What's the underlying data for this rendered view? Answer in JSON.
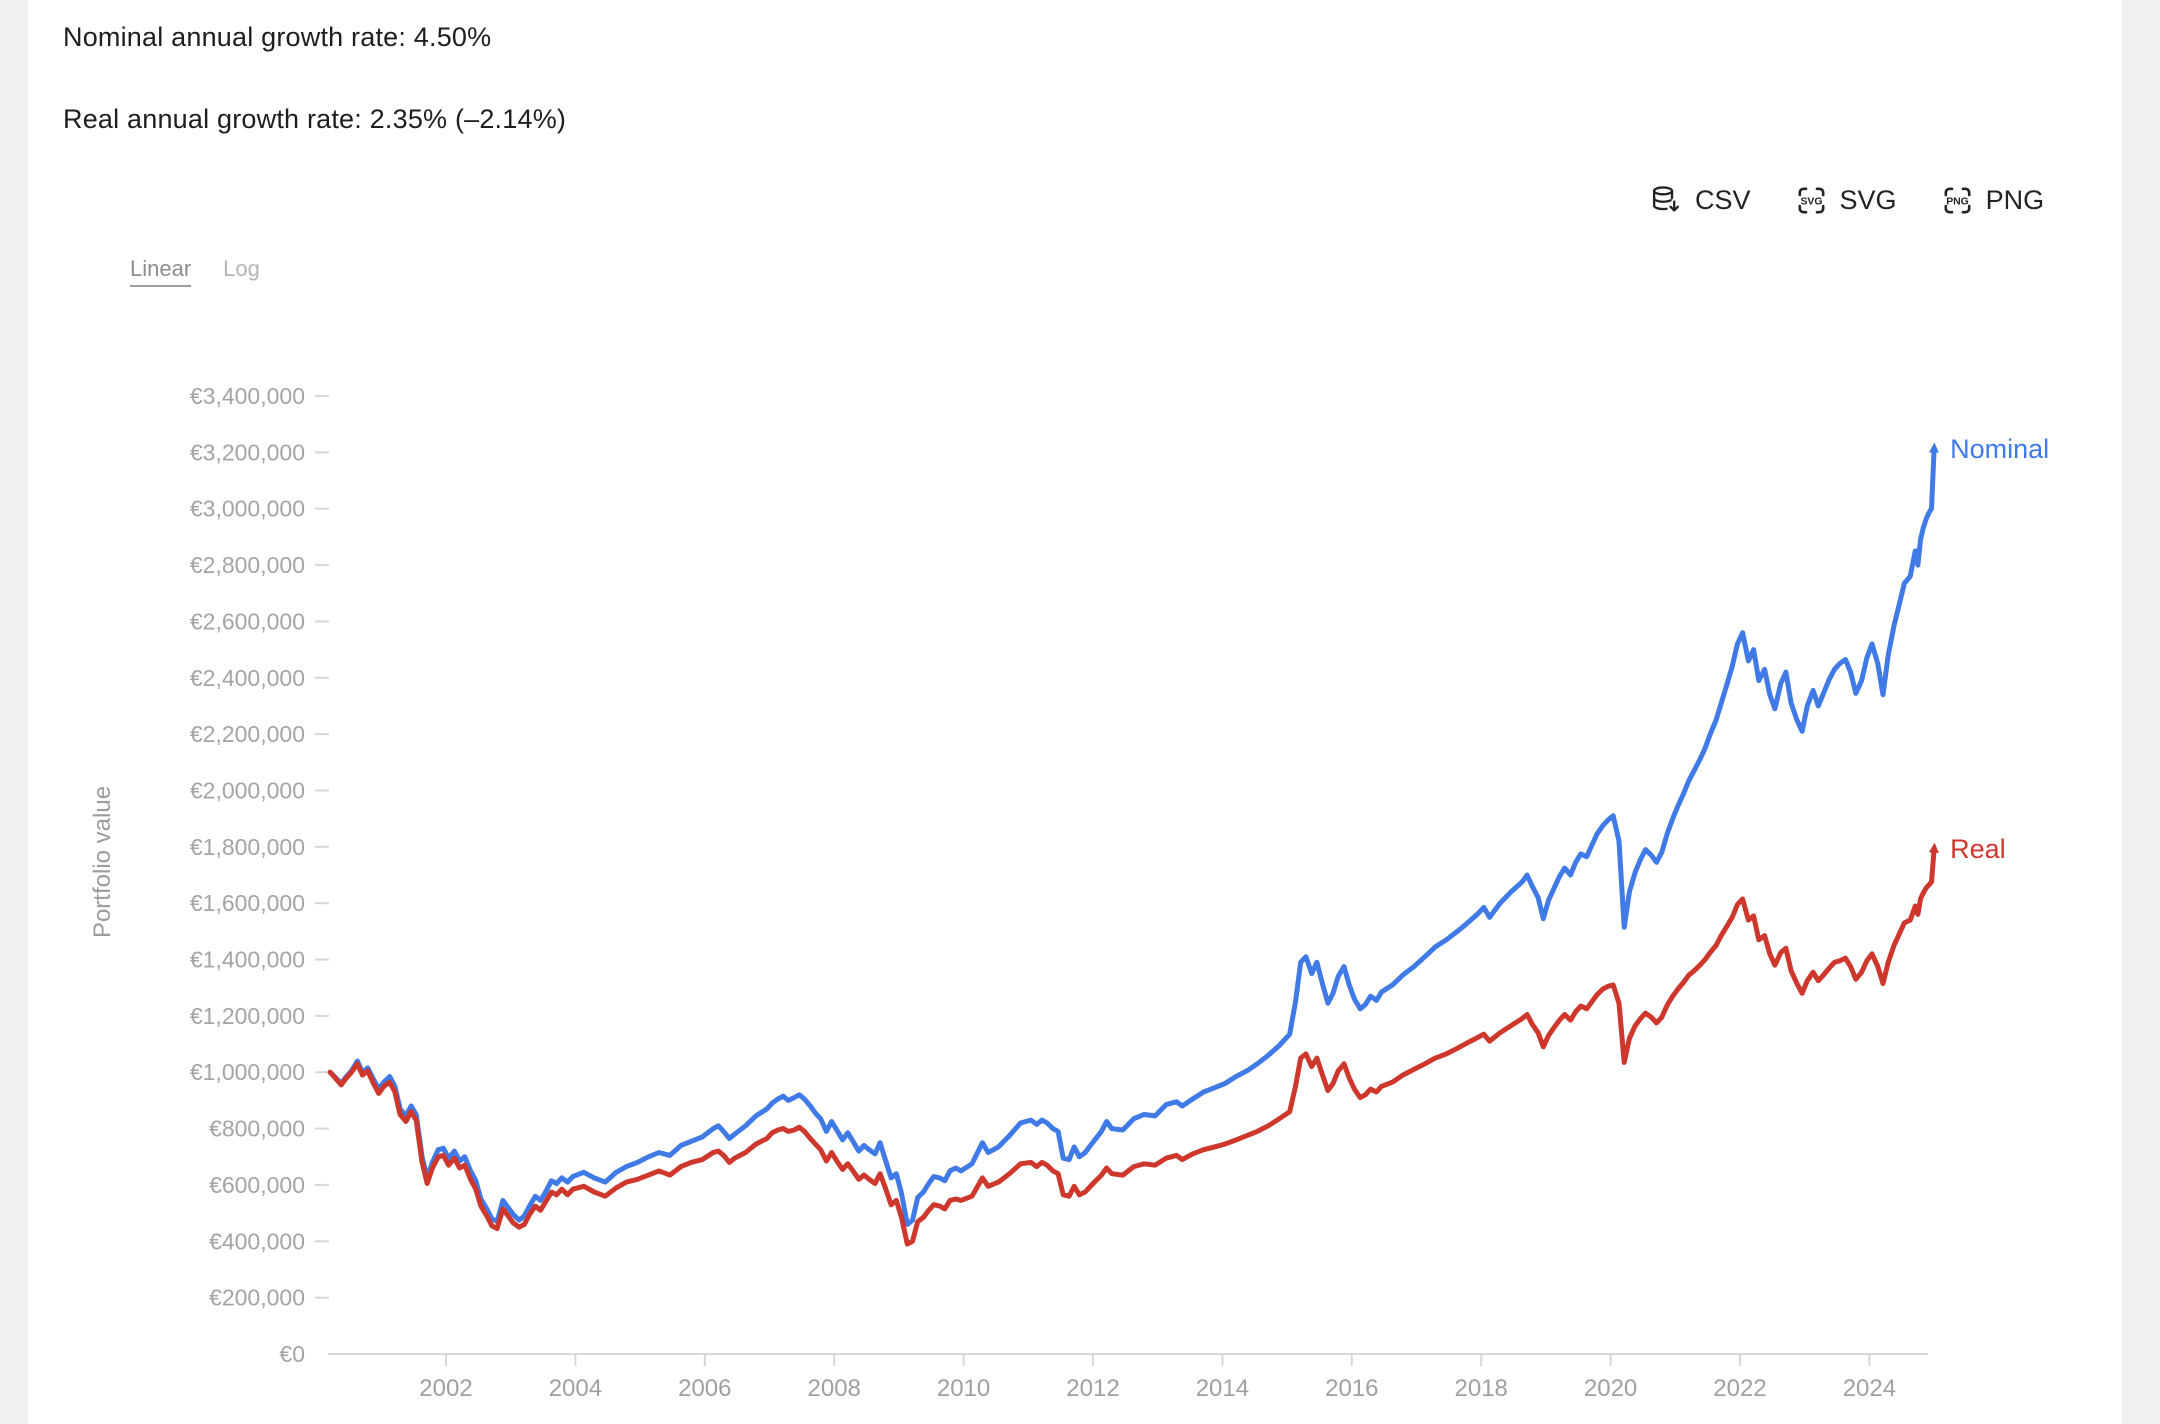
{
  "header": {
    "line1": "Nominal annual growth rate: 4.50%",
    "line2": "Real annual growth rate: 2.35% (–2.14%)"
  },
  "export_buttons": [
    {
      "id": "csv",
      "label": "CSV",
      "icon": "database-download-icon",
      "icon_text": ""
    },
    {
      "id": "svg",
      "label": "SVG",
      "icon": "svg-file-badge-icon",
      "icon_text": "SVG"
    },
    {
      "id": "png",
      "label": "PNG",
      "icon": "png-file-badge-icon",
      "icon_text": "PNG"
    }
  ],
  "scale_toggle": {
    "options": [
      {
        "label": "Linear",
        "active": true
      },
      {
        "label": "Log",
        "active": false
      }
    ]
  },
  "y_axis_title": "Portfolio value",
  "colors": {
    "nominal": "#3f7ae6",
    "real": "#cd372c",
    "axis_line": "#dadada",
    "tick_mark": "#d7d7d7",
    "y_label_text": "#a4a4a7",
    "x_label_text": "#a0a0a3",
    "header_text": "#1e1e1e",
    "export_text": "#232323",
    "side_strip": "#f0f0f1"
  },
  "chart_data": {
    "type": "line",
    "title": "",
    "xlabel": "",
    "ylabel": "Portfolio value",
    "grid": false,
    "legend": "end-of-line-labels",
    "x_unit": "decimal year",
    "values_unit": "EUR (thousands)",
    "xlim": [
      2000.2,
      2025.0
    ],
    "ylim": [
      0,
      3400000
    ],
    "y_ticks": [
      {
        "value": 0,
        "label": "€0"
      },
      {
        "value": 200000,
        "label": "€200,000"
      },
      {
        "value": 400000,
        "label": "€400,000"
      },
      {
        "value": 600000,
        "label": "€600,000"
      },
      {
        "value": 800000,
        "label": "€800,000"
      },
      {
        "value": 1000000,
        "label": "€1,000,000"
      },
      {
        "value": 1200000,
        "label": "€1,200,000"
      },
      {
        "value": 1400000,
        "label": "€1,400,000"
      },
      {
        "value": 1600000,
        "label": "€1,600,000"
      },
      {
        "value": 1800000,
        "label": "€1,800,000"
      },
      {
        "value": 2000000,
        "label": "€2,000,000"
      },
      {
        "value": 2200000,
        "label": "€2,200,000"
      },
      {
        "value": 2400000,
        "label": "€2,400,000"
      },
      {
        "value": 2600000,
        "label": "€2,600,000"
      },
      {
        "value": 2800000,
        "label": "€2,800,000"
      },
      {
        "value": 3000000,
        "label": "€3,000,000"
      },
      {
        "value": 3200000,
        "label": "€3,200,000"
      },
      {
        "value": 3400000,
        "label": "€3,400,000"
      }
    ],
    "x_ticks": [
      {
        "value": 2002,
        "label": "2002"
      },
      {
        "value": 2004,
        "label": "2004"
      },
      {
        "value": 2006,
        "label": "2006"
      },
      {
        "value": 2008,
        "label": "2008"
      },
      {
        "value": 2010,
        "label": "2010"
      },
      {
        "value": 2012,
        "label": "2012"
      },
      {
        "value": 2014,
        "label": "2014"
      },
      {
        "value": 2016,
        "label": "2016"
      },
      {
        "value": 2018,
        "label": "2018"
      },
      {
        "value": 2020,
        "label": "2020"
      },
      {
        "value": 2022,
        "label": "2022"
      },
      {
        "value": 2024,
        "label": "2024"
      }
    ],
    "x": [
      2000.21,
      2000.38,
      2000.46,
      2000.54,
      2000.63,
      2000.71,
      2000.79,
      2000.88,
      2000.96,
      2001.04,
      2001.13,
      2001.21,
      2001.29,
      2001.38,
      2001.46,
      2001.54,
      2001.63,
      2001.71,
      2001.79,
      2001.88,
      2001.96,
      2002.04,
      2002.13,
      2002.21,
      2002.29,
      2002.38,
      2002.46,
      2002.54,
      2002.63,
      2002.71,
      2002.79,
      2002.88,
      2002.96,
      2003.04,
      2003.13,
      2003.21,
      2003.29,
      2003.38,
      2003.46,
      2003.54,
      2003.63,
      2003.71,
      2003.79,
      2003.88,
      2003.96,
      2004.13,
      2004.29,
      2004.46,
      2004.63,
      2004.79,
      2004.96,
      2005.13,
      2005.29,
      2005.46,
      2005.63,
      2005.79,
      2005.96,
      2006.13,
      2006.21,
      2006.29,
      2006.38,
      2006.46,
      2006.63,
      2006.79,
      2006.96,
      2007.04,
      2007.13,
      2007.21,
      2007.29,
      2007.38,
      2007.46,
      2007.54,
      2007.63,
      2007.71,
      2007.79,
      2007.88,
      2007.96,
      2008.04,
      2008.13,
      2008.21,
      2008.29,
      2008.38,
      2008.46,
      2008.54,
      2008.63,
      2008.71,
      2008.79,
      2008.88,
      2008.96,
      2009.04,
      2009.13,
      2009.21,
      2009.29,
      2009.38,
      2009.46,
      2009.54,
      2009.63,
      2009.71,
      2009.79,
      2009.88,
      2009.96,
      2010.13,
      2010.29,
      2010.38,
      2010.54,
      2010.71,
      2010.88,
      2011.04,
      2011.13,
      2011.21,
      2011.29,
      2011.38,
      2011.46,
      2011.54,
      2011.63,
      2011.71,
      2011.79,
      2011.88,
      2011.96,
      2012.13,
      2012.21,
      2012.29,
      2012.46,
      2012.63,
      2012.79,
      2012.96,
      2013.13,
      2013.29,
      2013.38,
      2013.54,
      2013.71,
      2013.88,
      2014.04,
      2014.21,
      2014.38,
      2014.54,
      2014.71,
      2014.88,
      2015.04,
      2015.13,
      2015.21,
      2015.29,
      2015.38,
      2015.46,
      2015.54,
      2015.63,
      2015.71,
      2015.79,
      2015.88,
      2015.96,
      2016.04,
      2016.13,
      2016.21,
      2016.29,
      2016.38,
      2016.46,
      2016.63,
      2016.79,
      2016.96,
      2017.13,
      2017.29,
      2017.46,
      2017.63,
      2017.79,
      2017.96,
      2018.04,
      2018.13,
      2018.21,
      2018.29,
      2018.46,
      2018.63,
      2018.71,
      2018.79,
      2018.88,
      2018.96,
      2019.04,
      2019.13,
      2019.21,
      2019.29,
      2019.38,
      2019.46,
      2019.54,
      2019.63,
      2019.71,
      2019.79,
      2019.88,
      2019.96,
      2020.04,
      2020.13,
      2020.21,
      2020.29,
      2020.38,
      2020.46,
      2020.54,
      2020.63,
      2020.71,
      2020.79,
      2020.88,
      2020.96,
      2021.04,
      2021.13,
      2021.21,
      2021.29,
      2021.38,
      2021.46,
      2021.54,
      2021.63,
      2021.71,
      2021.79,
      2021.88,
      2021.96,
      2022.04,
      2022.13,
      2022.21,
      2022.29,
      2022.38,
      2022.46,
      2022.54,
      2022.63,
      2022.71,
      2022.79,
      2022.88,
      2022.96,
      2023.04,
      2023.13,
      2023.21,
      2023.29,
      2023.38,
      2023.46,
      2023.54,
      2023.63,
      2023.71,
      2023.79,
      2023.88,
      2023.96,
      2024.04,
      2024.13,
      2024.21,
      2024.29,
      2024.38,
      2024.46,
      2024.54,
      2024.63,
      2024.71,
      2024.75,
      2024.79,
      2024.83,
      2024.88,
      2024.92,
      2024.96,
      2025.0
    ],
    "series": [
      {
        "name": "Nominal",
        "color": "#3f7ae6",
        "values": [
          1000,
          960,
          985,
          1005,
          1040,
          1000,
          1015,
          975,
          940,
          965,
          985,
          950,
          870,
          845,
          880,
          850,
          700,
          625,
          680,
          725,
          730,
          695,
          720,
          685,
          700,
          650,
          615,
          550,
          515,
          480,
          470,
          545,
          520,
          495,
          475,
          490,
          525,
          560,
          545,
          575,
          615,
          605,
          625,
          610,
          630,
          645,
          625,
          610,
          645,
          665,
          680,
          700,
          715,
          705,
          740,
          755,
          770,
          800,
          810,
          790,
          765,
          780,
          810,
          845,
          870,
          890,
          905,
          915,
          900,
          910,
          920,
          905,
          880,
          855,
          835,
          790,
          825,
          795,
          760,
          785,
          755,
          720,
          740,
          725,
          710,
          750,
          690,
          625,
          640,
          570,
          460,
          475,
          555,
          575,
          605,
          630,
          625,
          615,
          650,
          660,
          650,
          675,
          750,
          715,
          735,
          775,
          820,
          830,
          815,
          830,
          820,
          800,
          790,
          695,
          690,
          735,
          700,
          715,
          740,
          790,
          825,
          800,
          795,
          835,
          850,
          845,
          885,
          895,
          880,
          905,
          930,
          945,
          960,
          985,
          1005,
          1030,
          1060,
          1095,
          1135,
          1250,
          1390,
          1410,
          1350,
          1390,
          1320,
          1245,
          1280,
          1340,
          1375,
          1310,
          1260,
          1225,
          1240,
          1270,
          1255,
          1285,
          1310,
          1345,
          1375,
          1410,
          1445,
          1470,
          1500,
          1530,
          1565,
          1585,
          1550,
          1575,
          1600,
          1640,
          1675,
          1700,
          1660,
          1620,
          1545,
          1610,
          1655,
          1695,
          1725,
          1700,
          1745,
          1775,
          1765,
          1805,
          1845,
          1875,
          1895,
          1910,
          1820,
          1515,
          1640,
          1710,
          1755,
          1790,
          1770,
          1745,
          1780,
          1850,
          1900,
          1945,
          1990,
          2035,
          2070,
          2110,
          2150,
          2200,
          2250,
          2310,
          2370,
          2440,
          2520,
          2560,
          2460,
          2500,
          2390,
          2430,
          2340,
          2290,
          2380,
          2420,
          2310,
          2250,
          2210,
          2300,
          2355,
          2300,
          2345,
          2395,
          2430,
          2450,
          2465,
          2420,
          2345,
          2390,
          2470,
          2520,
          2450,
          2340,
          2480,
          2585,
          2660,
          2735,
          2760,
          2850,
          2800,
          2890,
          2930,
          2965,
          2985,
          3000,
          3210
        ]
      },
      {
        "name": "Real",
        "color": "#cd372c",
        "values": [
          1000,
          955,
          980,
          1000,
          1030,
          990,
          1005,
          960,
          925,
          950,
          965,
          930,
          850,
          825,
          860,
          830,
          680,
          605,
          660,
          700,
          705,
          670,
          695,
          660,
          670,
          620,
          585,
          525,
          490,
          455,
          445,
          515,
          490,
          465,
          450,
          460,
          495,
          525,
          510,
          540,
          575,
          565,
          585,
          565,
          585,
          595,
          575,
          560,
          590,
          610,
          620,
          635,
          650,
          635,
          665,
          680,
          690,
          715,
          720,
          705,
          680,
          695,
          715,
          745,
          765,
          785,
          795,
          800,
          790,
          795,
          805,
          790,
          765,
          745,
          725,
          685,
          715,
          685,
          655,
          675,
          650,
          620,
          635,
          620,
          605,
          640,
          590,
          530,
          545,
          485,
          390,
          400,
          470,
          485,
          510,
          530,
          525,
          515,
          545,
          550,
          545,
          560,
          625,
          595,
          610,
          640,
          675,
          680,
          665,
          680,
          670,
          650,
          640,
          565,
          560,
          595,
          565,
          575,
          595,
          635,
          660,
          640,
          635,
          665,
          675,
          670,
          695,
          705,
          690,
          710,
          725,
          735,
          745,
          760,
          775,
          790,
          810,
          835,
          860,
          950,
          1050,
          1065,
          1020,
          1050,
          995,
          935,
          960,
          1005,
          1030,
          980,
          940,
          910,
          920,
          940,
          930,
          950,
          965,
          990,
          1010,
          1030,
          1050,
          1065,
          1085,
          1105,
          1125,
          1135,
          1110,
          1125,
          1140,
          1165,
          1190,
          1205,
          1170,
          1140,
          1090,
          1130,
          1160,
          1185,
          1205,
          1185,
          1215,
          1235,
          1225,
          1250,
          1275,
          1295,
          1305,
          1310,
          1245,
          1035,
          1120,
          1165,
          1190,
          1210,
          1195,
          1175,
          1195,
          1240,
          1270,
          1295,
          1320,
          1345,
          1360,
          1380,
          1400,
          1425,
          1450,
          1485,
          1515,
          1550,
          1595,
          1615,
          1540,
          1555,
          1470,
          1485,
          1420,
          1380,
          1425,
          1440,
          1360,
          1315,
          1280,
          1325,
          1355,
          1325,
          1345,
          1370,
          1390,
          1395,
          1405,
          1375,
          1330,
          1355,
          1395,
          1420,
          1375,
          1315,
          1390,
          1450,
          1490,
          1530,
          1540,
          1590,
          1560,
          1615,
          1635,
          1655,
          1665,
          1675,
          1790
        ]
      }
    ]
  }
}
